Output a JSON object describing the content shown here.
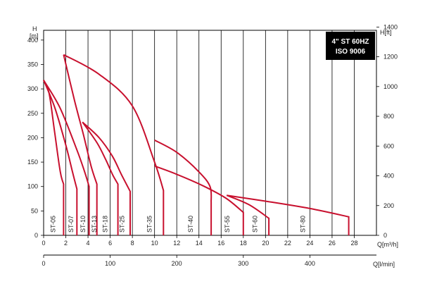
{
  "chart_data": {
    "type": "line",
    "badge": {
      "line1": "4\" ST 60HZ",
      "line2": "ISO 9006"
    },
    "axes": {
      "y_left": {
        "label_top": "H",
        "label_unit": "[m]",
        "range": [
          0,
          420
        ],
        "ticks": [
          0,
          50,
          100,
          150,
          200,
          250,
          300,
          350,
          400
        ]
      },
      "y_right": {
        "label": "H[ft]",
        "range": [
          0,
          1378
        ],
        "ticks": [
          0,
          200,
          400,
          600,
          800,
          1000,
          1200,
          1400
        ]
      },
      "x_top": {
        "label": "Q[m³/h]",
        "range": [
          0,
          30
        ],
        "ticks": [
          0,
          2,
          4,
          6,
          8,
          10,
          12,
          14,
          16,
          18,
          20,
          22,
          24,
          26,
          28
        ]
      },
      "x_bottom": {
        "label": "Q[l/min]",
        "range": [
          0,
          500
        ],
        "ticks": [
          0,
          100,
          200,
          300,
          400
        ]
      }
    },
    "grid": "vertical",
    "color": "#c8102e",
    "series": [
      {
        "name": "ST-05",
        "label_x": 0.9,
        "drop_x": 1.8,
        "points": [
          [
            0,
            318
          ],
          [
            0.5,
            290
          ],
          [
            1.0,
            210
          ],
          [
            1.5,
            130
          ],
          [
            1.8,
            105
          ]
        ]
      },
      {
        "name": "ST-07",
        "label_x": 2.5,
        "drop_x": 3.0,
        "points": [
          [
            0,
            318
          ],
          [
            1.0,
            262
          ],
          [
            2.0,
            185
          ],
          [
            2.6,
            130
          ],
          [
            3.0,
            95
          ]
        ]
      },
      {
        "name": "ST-10",
        "label_x": 3.6,
        "drop_x": 4.1,
        "points": [
          [
            0,
            318
          ],
          [
            1.5,
            260
          ],
          [
            3.0,
            175
          ],
          [
            3.7,
            130
          ],
          [
            4.1,
            100
          ]
        ]
      },
      {
        "name": "ST-13",
        "label_x": 4.6,
        "drop_x": 4.8,
        "points": [
          [
            1.8,
            370
          ],
          [
            2.8,
            275
          ],
          [
            3.6,
            205
          ],
          [
            4.3,
            140
          ],
          [
            4.8,
            105
          ]
        ]
      },
      {
        "name": "ST-18",
        "label_x": 5.6,
        "drop_x": 6.7,
        "points": [
          [
            3.5,
            232
          ],
          [
            4.8,
            190
          ],
          [
            5.6,
            155
          ],
          [
            6.2,
            125
          ],
          [
            6.7,
            105
          ]
        ]
      },
      {
        "name": "ST-25",
        "label_x": 7.1,
        "drop_x": 7.8,
        "points": [
          [
            3.5,
            232
          ],
          [
            5.0,
            200
          ],
          [
            6.2,
            162
          ],
          [
            7.0,
            125
          ],
          [
            7.8,
            90
          ]
        ]
      },
      {
        "name": "ST-35",
        "label_x": 9.6,
        "drop_x": 10.8,
        "points": [
          [
            1.8,
            370
          ],
          [
            5.0,
            330
          ],
          [
            8.0,
            265
          ],
          [
            10.0,
            150
          ],
          [
            10.8,
            92
          ]
        ]
      },
      {
        "name": "ST-40",
        "label_x": 13.3,
        "drop_x": 15.0,
        "points": [
          [
            10.0,
            195
          ],
          [
            12.0,
            170
          ],
          [
            14.0,
            130
          ],
          [
            15.0,
            100
          ],
          [
            15.1,
            68
          ]
        ]
      },
      {
        "name": "ST-55",
        "label_x": 16.6,
        "drop_x": 18.0,
        "points": [
          [
            10.0,
            142
          ],
          [
            12.0,
            125
          ],
          [
            14.5,
            100
          ],
          [
            16.5,
            75
          ],
          [
            18.0,
            47
          ]
        ]
      },
      {
        "name": "ST-60",
        "label_x": 19.1,
        "drop_x": 20.3,
        "points": [
          [
            16.5,
            82
          ],
          [
            18.5,
            63
          ],
          [
            20.3,
            35
          ]
        ]
      },
      {
        "name": "ST-80",
        "label_x": 23.4,
        "drop_x": 27.5,
        "points": [
          [
            16.5,
            82
          ],
          [
            20.0,
            70
          ],
          [
            24.0,
            55
          ],
          [
            27.5,
            38
          ]
        ]
      }
    ]
  }
}
